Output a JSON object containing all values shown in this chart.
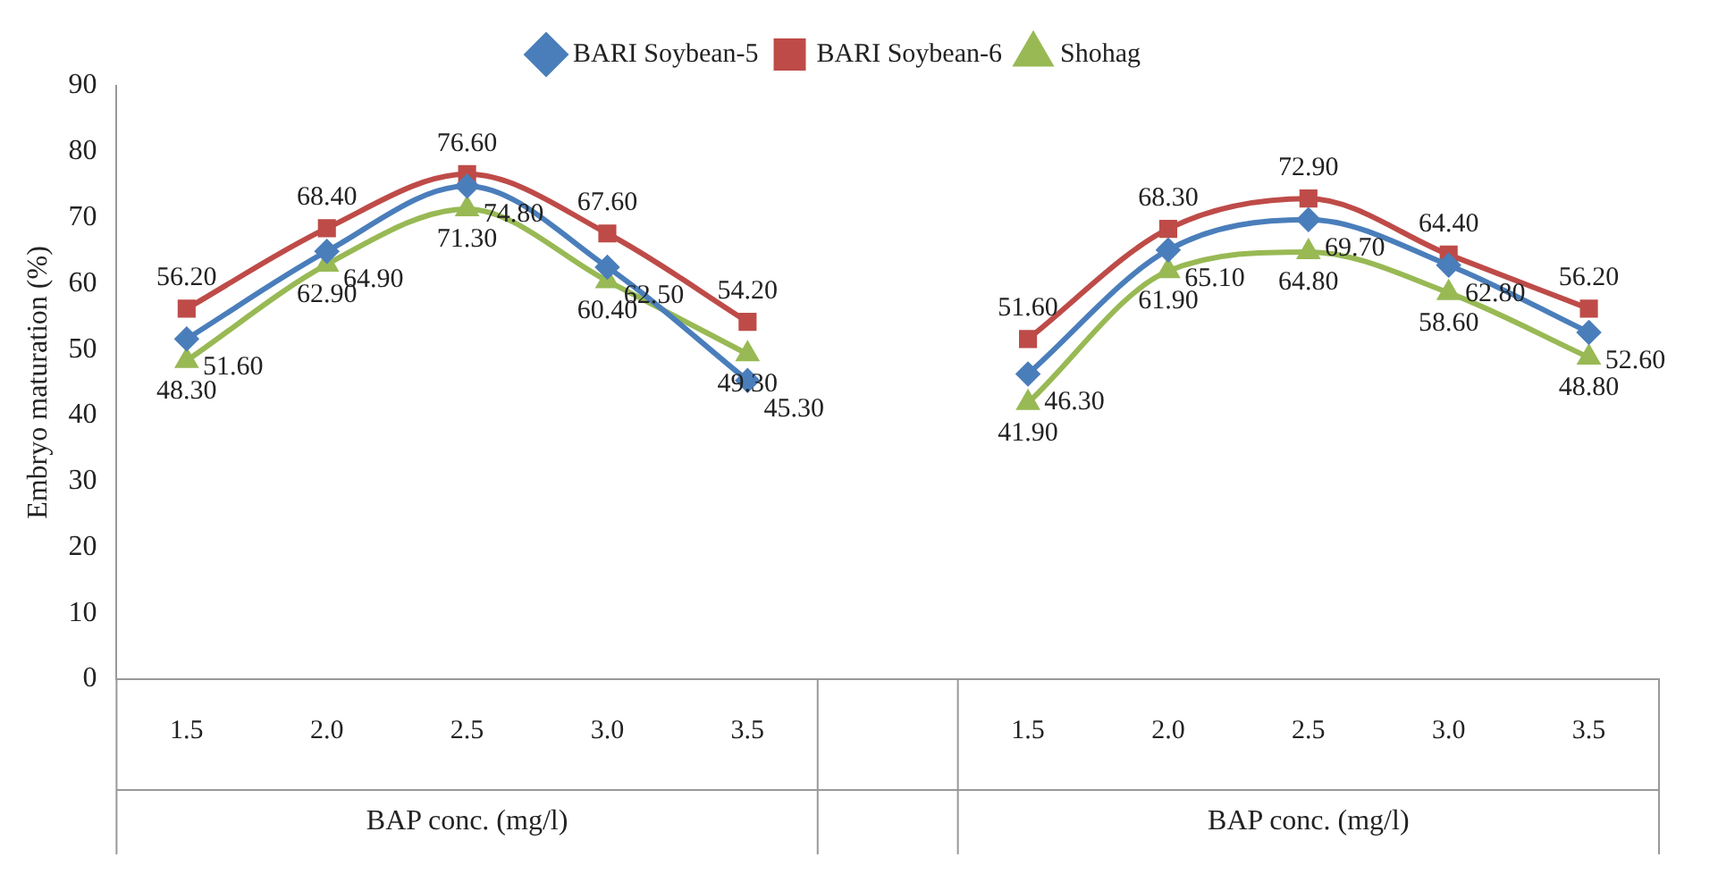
{
  "chart_data": {
    "type": "line",
    "ylabel": "Embryo maturation (%)",
    "categories": [
      "1.5",
      "2.0",
      "2.5",
      "3.0",
      "3.5",
      null,
      "1.5",
      "2.0",
      "2.5",
      "3.0",
      "3.5"
    ],
    "ylim": [
      0,
      90
    ],
    "yticks": [
      0,
      10,
      20,
      30,
      40,
      50,
      60,
      70,
      80,
      90
    ],
    "grid": false,
    "legend": "top",
    "annotations": [
      "BAP conc. (mg/l)",
      "BAP conc. (mg/l)"
    ],
    "series": [
      {
        "name": "BARI Soybean-5",
        "color": "#4a7ebb",
        "marker": "diamond",
        "values": [
          51.6,
          64.9,
          74.8,
          62.5,
          45.3,
          null,
          46.3,
          65.1,
          69.7,
          62.8,
          52.6
        ],
        "value_labels": [
          "51.60",
          "64.90",
          "74.80",
          "62.50",
          "45.30",
          null,
          "46.30",
          "65.10",
          "69.70",
          "62.80",
          "52.60"
        ]
      },
      {
        "name": "BARI Soybean-6",
        "color": "#be4b48",
        "marker": "square",
        "values": [
          56.2,
          68.4,
          76.6,
          67.6,
          54.2,
          null,
          51.6,
          68.3,
          72.9,
          64.4,
          56.2
        ],
        "value_labels": [
          "56.20",
          "68.40",
          "76.60",
          "67.60",
          "54.20",
          null,
          "51.60",
          "68.30",
          "72.90",
          "64.40",
          "56.20"
        ]
      },
      {
        "name": "Shohag",
        "color": "#98b954",
        "marker": "triangle",
        "values": [
          48.3,
          62.9,
          71.3,
          60.4,
          49.3,
          null,
          41.9,
          61.9,
          64.8,
          58.6,
          48.8
        ],
        "value_labels": [
          "48.30",
          "62.90",
          "71.30",
          "60.40",
          "49.30",
          null,
          "41.90",
          "61.90",
          "64.80",
          "58.60",
          "48.80"
        ]
      }
    ]
  }
}
